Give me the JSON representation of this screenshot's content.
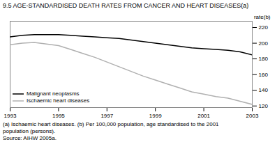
{
  "chart_data": {
    "type": "line",
    "title": "9.5   AGE-STANDARDISED DEATH RATES FROM CANCER AND HEART DISEASES(a)",
    "ylabel": "rate(b)",
    "x": [
      1993,
      1993.5,
      1994,
      1994.5,
      1995,
      1995.5,
      1996,
      1996.5,
      1997,
      1997.5,
      1998,
      1998.5,
      1999,
      1999.5,
      2000,
      2000.5,
      2001,
      2001.5,
      2002,
      2002.5,
      2003
    ],
    "series": [
      {
        "name": "Malignant neoplasms",
        "color": "#000000",
        "values": [
          208,
          210,
          211,
          211,
          211,
          210,
          209,
          208,
          207,
          206,
          204,
          202,
          200,
          198,
          196,
          194,
          193,
          192,
          191,
          189,
          185
        ]
      },
      {
        "name": "Ischaemic heart diseases",
        "color": "#b0b0b0",
        "values": [
          198,
          200,
          201,
          199,
          197,
          192,
          187,
          182,
          176,
          170,
          164,
          158,
          153,
          148,
          143,
          138,
          135,
          132,
          130,
          126,
          122
        ]
      }
    ],
    "xlim": [
      1993,
      2003
    ],
    "xticks": [
      1993,
      1995,
      1997,
      1999,
      2001,
      2003
    ],
    "ylim": [
      118,
      228
    ],
    "yticks": [
      120,
      140,
      160,
      180,
      200,
      220
    ],
    "grid": false,
    "legend": "lower left",
    "annotations": [
      "(a) Ischaemic heart diseases. (b) Per 100,000 population, age standardised to the 2001",
      "population (persons).",
      "Source: AIHW 2005a."
    ]
  }
}
